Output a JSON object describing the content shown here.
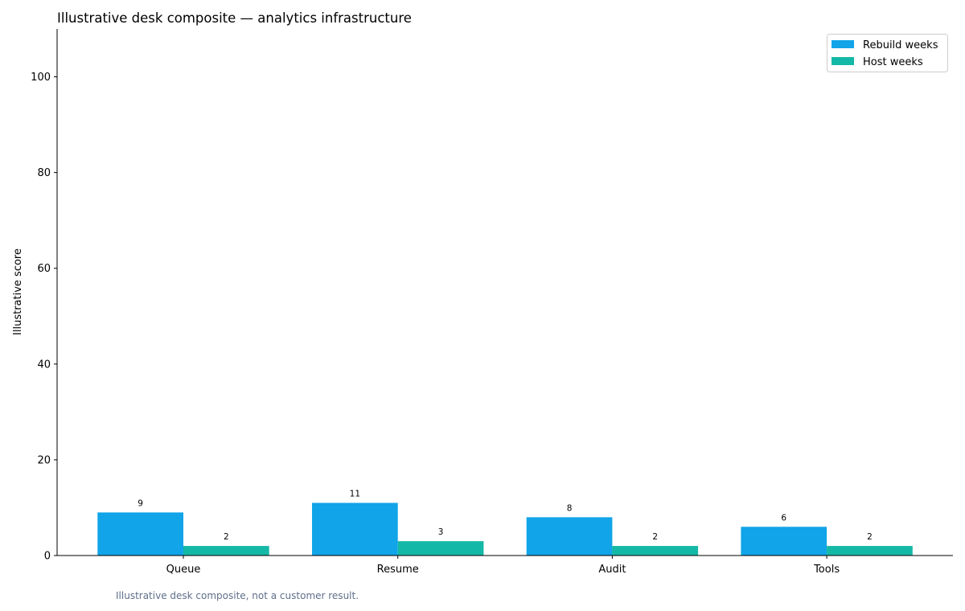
{
  "chart_data": {
    "type": "bar",
    "title": "Illustrative desk composite — analytics infrastructure",
    "xlabel": "",
    "ylabel": "Illustrative score",
    "categories": [
      "Queue",
      "Resume",
      "Audit",
      "Tools"
    ],
    "series": [
      {
        "name": "Rebuild weeks",
        "values": [
          9,
          11,
          8,
          6
        ],
        "color": "#11a4e8"
      },
      {
        "name": "Host weeks",
        "values": [
          2,
          3,
          2,
          2
        ],
        "color": "#14b8a6"
      }
    ],
    "ylim": [
      0,
      110
    ],
    "yticks": [
      0,
      20,
      40,
      60,
      80,
      100
    ],
    "grid": false,
    "legend_position": "top-right",
    "footnote": "Illustrative desk composite, not a customer result."
  }
}
